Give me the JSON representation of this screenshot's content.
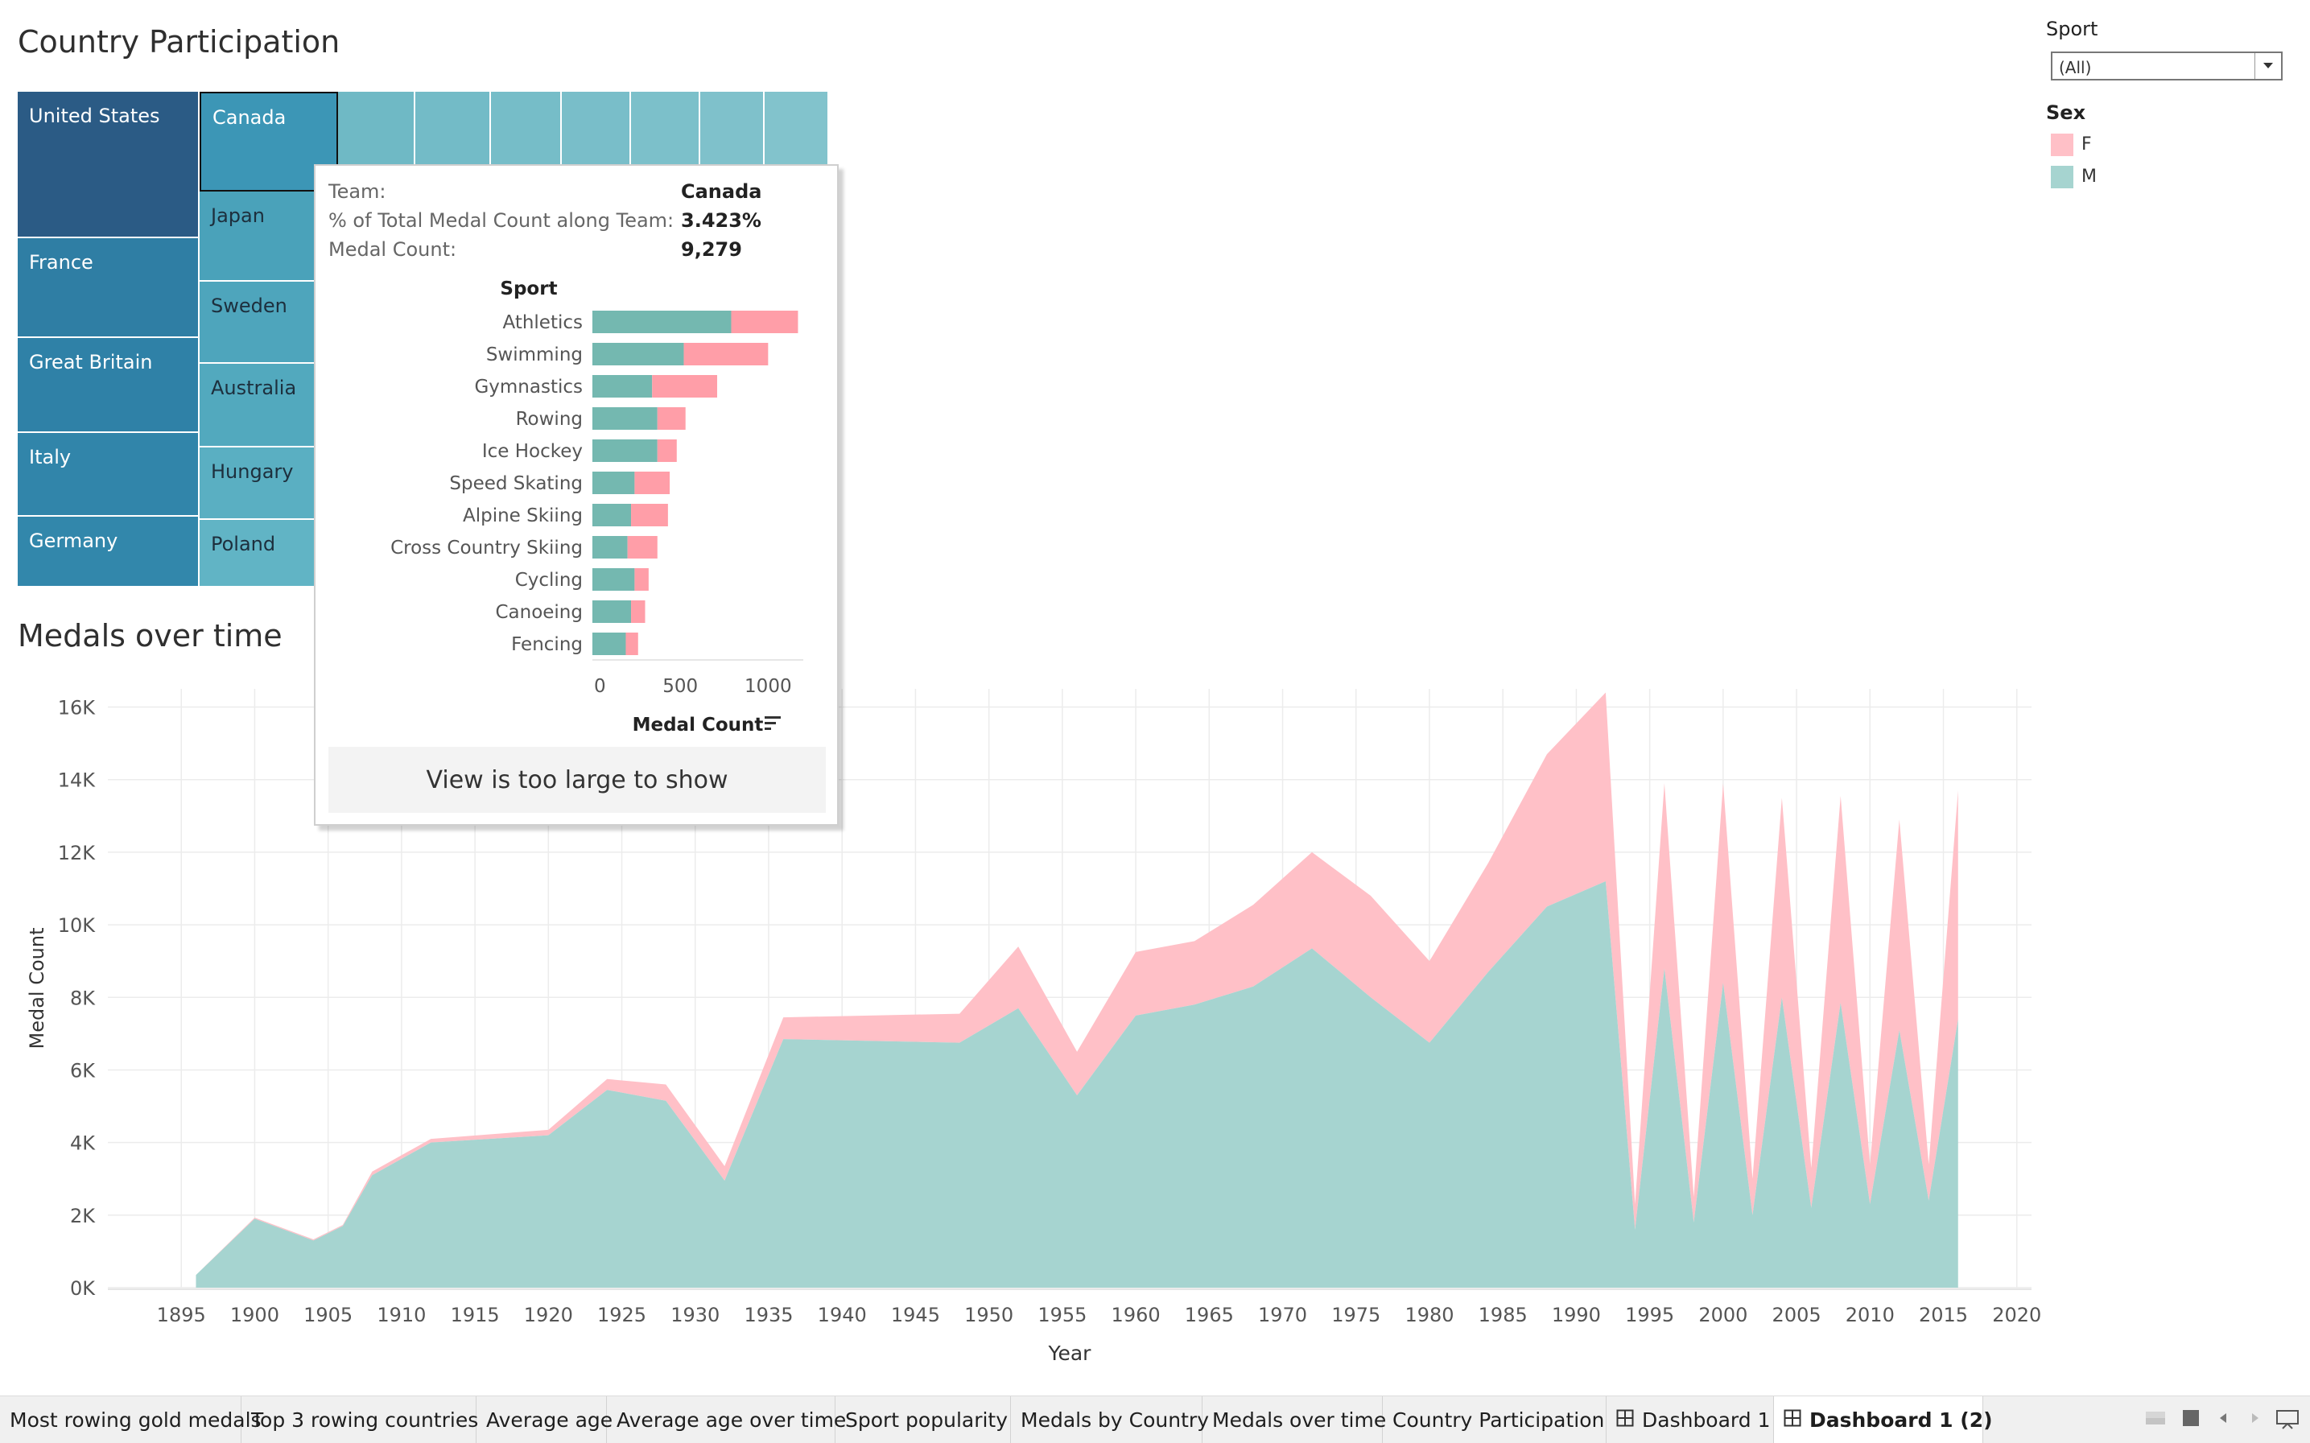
{
  "country_participation": {
    "title": "Country Participation",
    "cells": [
      {
        "name": "United States",
        "color": "#2b5b85"
      },
      {
        "name": "France",
        "color": "#2f7ea4"
      },
      {
        "name": "Great Britain",
        "color": "#2f81a7"
      },
      {
        "name": "Italy",
        "color": "#3185aa"
      },
      {
        "name": "Germany",
        "color": "#3287ab"
      },
      {
        "name": "Canada",
        "color": "#3c96b6",
        "selected": true
      },
      {
        "name": "Japan",
        "color": "#4aa2ba"
      },
      {
        "name": "Sweden",
        "color": "#4ea5bc"
      },
      {
        "name": "Australia",
        "color": "#52a9be"
      },
      {
        "name": "Hungary",
        "color": "#5aafc2"
      },
      {
        "name": "Poland",
        "color": "#61b4c5"
      }
    ]
  },
  "filters": {
    "sport": {
      "title": "Sport",
      "value": "(All)"
    },
    "sex_legend": {
      "title": "Sex",
      "items": [
        {
          "label": "F",
          "color": "#ffc0c7"
        },
        {
          "label": "M",
          "color": "#a6d4d0"
        }
      ]
    }
  },
  "tooltip": {
    "team_key": "Team:",
    "team_value": "Canada",
    "pct_key": "% of Total Medal Count along Team:",
    "pct_value": "3.423%",
    "medal_key": "Medal Count:",
    "medal_value": "9,279",
    "view_note": "View is too large to show",
    "mini_chart": {
      "type": "bar",
      "stacked": true,
      "orientation": "horizontal",
      "category_header": "Sport",
      "categories": [
        "Athletics",
        "Swimming",
        "Gymnastics",
        "Rowing",
        "Ice Hockey",
        "Speed Skating",
        "Alpine Skiing",
        "Cross Country Skiing",
        "Cycling",
        "Canoeing",
        "Fencing"
      ],
      "series": [
        {
          "name": "M",
          "color": "#74b8b0",
          "values": [
            790,
            520,
            340,
            370,
            370,
            240,
            220,
            200,
            240,
            220,
            190
          ]
        },
        {
          "name": "F",
          "color": "#ff9ea8",
          "values": [
            380,
            480,
            370,
            160,
            110,
            200,
            210,
            170,
            80,
            80,
            70
          ]
        }
      ],
      "xlabel": "Medal Count",
      "xlim": [
        0,
        1200
      ],
      "xticks": [
        "0",
        "500",
        "1000"
      ],
      "xtick_values": [
        0,
        500,
        1000
      ]
    }
  },
  "chart_data": {
    "type": "area",
    "title": "Medals over time",
    "xlabel": "Year",
    "ylabel": "Medal Count",
    "xlim": [
      1890,
      2021
    ],
    "ylim": [
      0,
      16500
    ],
    "grid": true,
    "xticks": [
      "1895",
      "1900",
      "1905",
      "1910",
      "1915",
      "1920",
      "1925",
      "1930",
      "1935",
      "1940",
      "1945",
      "1950",
      "1955",
      "1960",
      "1965",
      "1970",
      "1975",
      "1980",
      "1985",
      "1990",
      "1995",
      "2000",
      "2005",
      "2010",
      "2015",
      "2020"
    ],
    "xtick_values": [
      1895,
      1900,
      1905,
      1910,
      1915,
      1920,
      1925,
      1930,
      1935,
      1940,
      1945,
      1950,
      1955,
      1960,
      1965,
      1970,
      1975,
      1980,
      1985,
      1990,
      1995,
      2000,
      2005,
      2010,
      2015,
      2020
    ],
    "yticks": [
      "0K",
      "2K",
      "4K",
      "6K",
      "8K",
      "10K",
      "12K",
      "14K",
      "16K"
    ],
    "ytick_values": [
      0,
      2000,
      4000,
      6000,
      8000,
      10000,
      12000,
      14000,
      16000
    ],
    "x": [
      1896,
      1900,
      1904,
      1906,
      1908,
      1912,
      1920,
      1924,
      1928,
      1932,
      1936,
      1948,
      1952,
      1956,
      1960,
      1964,
      1968,
      1972,
      1976,
      1980,
      1984,
      1988,
      1992,
      1994,
      1996,
      1998,
      2000,
      2002,
      2004,
      2006,
      2008,
      2010,
      2012,
      2014,
      2016
    ],
    "stacked": true,
    "series": [
      {
        "name": "M",
        "color": "#a6d4d0",
        "values": [
          350,
          1900,
          1300,
          1700,
          3100,
          4000,
          4200,
          5450,
          5150,
          2950,
          6850,
          6750,
          7700,
          5300,
          7500,
          7800,
          8300,
          9350,
          8000,
          6750,
          8700,
          10500,
          11200,
          1600,
          8800,
          1800,
          8400,
          2000,
          8000,
          2200,
          7850,
          2300,
          7100,
          2400,
          7400
        ]
      },
      {
        "name": "F",
        "color": "#ffc0c7",
        "values": [
          0,
          30,
          30,
          30,
          100,
          100,
          150,
          300,
          450,
          400,
          600,
          800,
          1700,
          1200,
          1750,
          1750,
          2250,
          2650,
          2800,
          2250,
          3000,
          4200,
          5200,
          700,
          5100,
          700,
          5500,
          1000,
          5500,
          1100,
          5700,
          1100,
          5800,
          1000,
          6300
        ]
      }
    ]
  },
  "tabs": [
    {
      "label": "Most rowing gold medals"
    },
    {
      "label": "Top 3 rowing countries"
    },
    {
      "label": "Average age"
    },
    {
      "label": "Average age over time"
    },
    {
      "label": "Sport popularity"
    },
    {
      "label": "Medals by Country"
    },
    {
      "label": "Medals over time"
    },
    {
      "label": "Country Participation"
    },
    {
      "label": "Dashboard 1",
      "icon": "dashboard-grid-icon"
    },
    {
      "label": "Dashboard 1 (2)",
      "icon": "dashboard-grid-icon",
      "active": true
    }
  ]
}
